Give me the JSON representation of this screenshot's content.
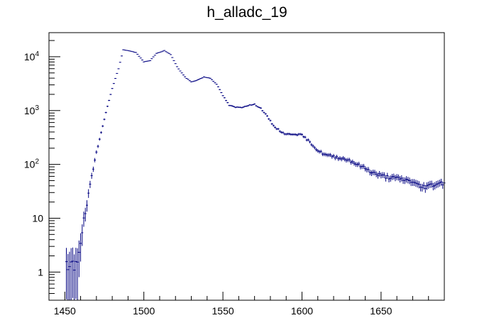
{
  "chart_data": {
    "type": "scatter",
    "title": "h_alladc_19",
    "xlabel": "",
    "ylabel": "",
    "xlim": [
      1440,
      1690
    ],
    "ylim": [
      0.3,
      28000
    ],
    "y_scale": "log",
    "grid": false,
    "legend": "none",
    "marker_color": "#000080",
    "x_ticks": [
      1450,
      1500,
      1550,
      1600,
      1650
    ],
    "x_tick_labels": [
      "1450",
      "1500",
      "1550",
      "1600",
      "1650"
    ],
    "y_ticks": [
      1,
      10,
      100,
      1000,
      10000
    ],
    "y_tick_labels": [
      {
        "base": "1",
        "exp": ""
      },
      {
        "base": "10",
        "exp": ""
      },
      {
        "base": "10",
        "exp": "2"
      },
      {
        "base": "10",
        "exp": "3"
      },
      {
        "base": "10",
        "exp": "4"
      }
    ],
    "series": [
      {
        "anchors_x": [
          1452,
          1455,
          1458,
          1461,
          1463,
          1466,
          1470,
          1475,
          1480,
          1484,
          1487,
          1490,
          1495,
          1500,
          1504,
          1508,
          1513,
          1517,
          1521,
          1526,
          1530,
          1534,
          1538,
          1542,
          1546,
          1550,
          1554,
          1558,
          1562,
          1566,
          1570,
          1574,
          1578,
          1582,
          1586,
          1590,
          1595,
          1600,
          1605,
          1610,
          1615,
          1620,
          1625,
          1630,
          1635,
          1640,
          1645,
          1650,
          1655,
          1660,
          1665,
          1670,
          1675,
          1680,
          1685,
          1690
        ],
        "anchors_y": [
          1,
          1.2,
          2,
          6,
          12,
          40,
          170,
          700,
          2600,
          6000,
          13500,
          13000,
          12000,
          8000,
          8500,
          11500,
          13000,
          11000,
          6500,
          4200,
          3400,
          3700,
          4200,
          4000,
          3100,
          1900,
          1250,
          1150,
          1150,
          1250,
          1300,
          1100,
          780,
          520,
          420,
          360,
          370,
          350,
          260,
          180,
          150,
          140,
          130,
          120,
          100,
          85,
          70,
          62,
          58,
          55,
          52,
          48,
          38,
          40,
          44,
          46
        ]
      }
    ]
  }
}
